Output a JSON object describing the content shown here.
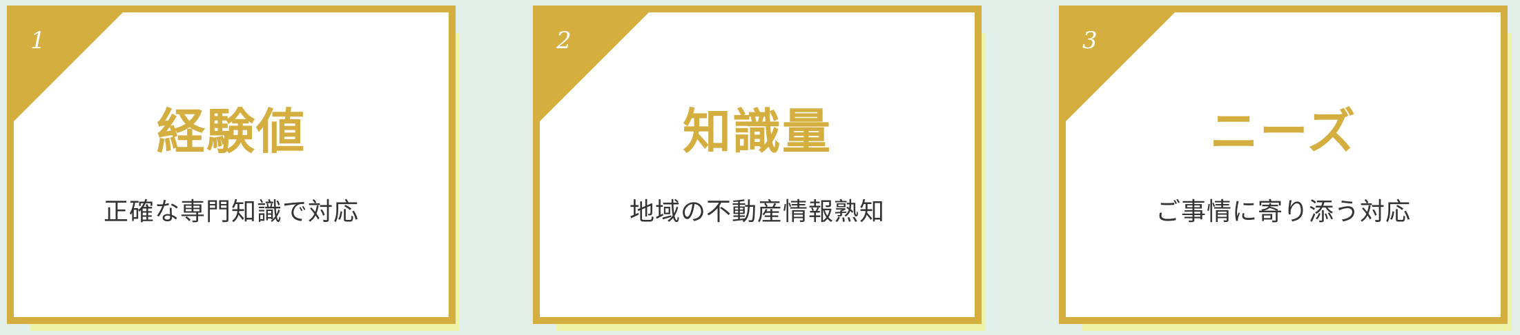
{
  "colors": {
    "background": "#e2eee8",
    "accent_gold": "#d4ae3f",
    "shadow_yellow": "#eef3a8",
    "card_bg": "#ffffff",
    "body_text": "#333333"
  },
  "cards": [
    {
      "number": "1",
      "title": "経験値",
      "subtitle": "正確な専門知識で対応"
    },
    {
      "number": "2",
      "title": "知識量",
      "subtitle": "地域の不動産情報熟知"
    },
    {
      "number": "3",
      "title": "ニーズ",
      "subtitle": "ご事情に寄り添う対応"
    }
  ]
}
